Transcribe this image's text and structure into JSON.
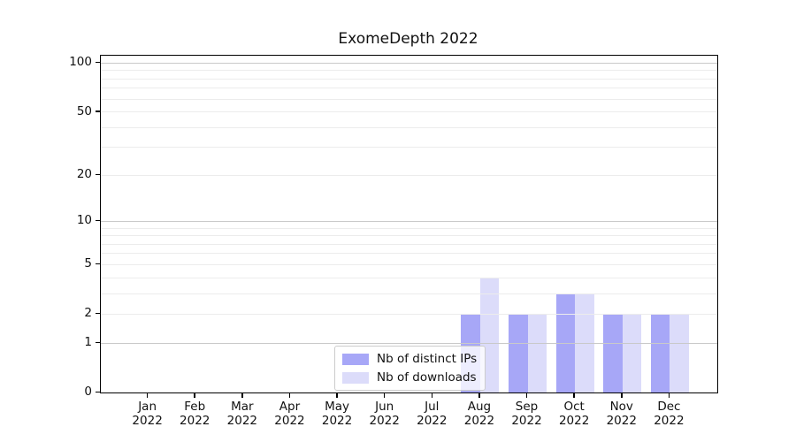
{
  "title": "ExomeDepth 2022",
  "chart_data": {
    "type": "bar",
    "title": "ExomeDepth 2022",
    "categories": [
      "Jan",
      "Feb",
      "Mar",
      "Apr",
      "May",
      "Jun",
      "Jul",
      "Aug",
      "Sep",
      "Oct",
      "Nov",
      "Dec"
    ],
    "category_year": "2022",
    "series": [
      {
        "name": "Nb of distinct IPs",
        "color": "#a7a7f7",
        "values": [
          0,
          0,
          0,
          0,
          0,
          0,
          0,
          2,
          2,
          3,
          2,
          2
        ]
      },
      {
        "name": "Nb of downloads",
        "color": "#dcdcfa",
        "values": [
          0,
          0,
          0,
          0,
          0,
          0,
          0,
          4,
          2,
          3,
          2,
          2
        ]
      }
    ],
    "xlabel": "",
    "ylabel": "",
    "yscale": "log1p",
    "ylim": [
      0,
      111
    ],
    "yticks": [
      0,
      1,
      2,
      5,
      10,
      20,
      50,
      100
    ],
    "grid": "on",
    "gridlines_major": [
      1,
      10,
      100
    ],
    "gridlines_minor": [
      2,
      3,
      4,
      5,
      6,
      7,
      8,
      9,
      20,
      30,
      40,
      50,
      60,
      70,
      80,
      90
    ],
    "legend_position": "lower center",
    "legend_entries": [
      "Nb of distinct IPs",
      "Nb of downloads"
    ]
  }
}
